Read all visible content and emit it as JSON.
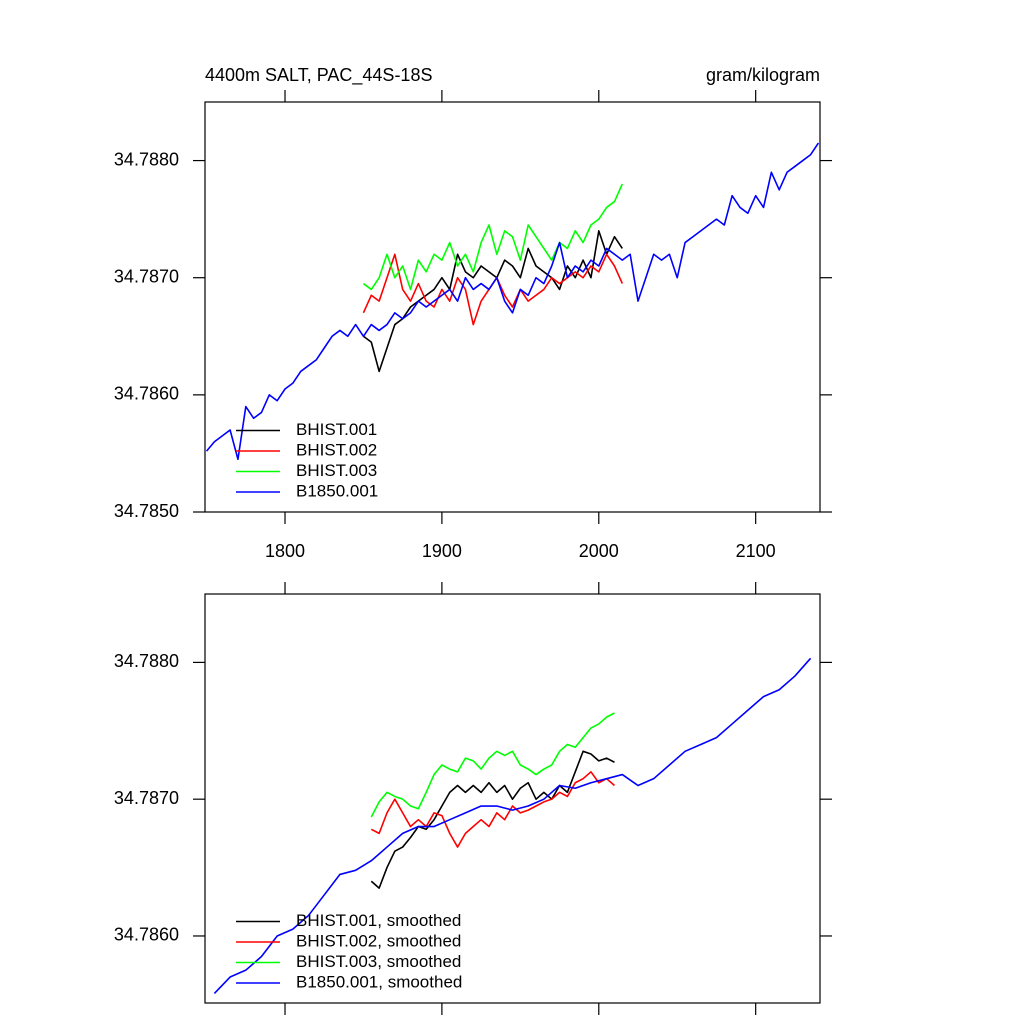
{
  "chart_data": [
    {
      "type": "line",
      "title": "4400m SALT, PAC_44S-18S",
      "units": "gram/kilogram",
      "xlim": [
        1749,
        2141
      ],
      "xticks": [
        1800,
        1900,
        2000,
        2100
      ],
      "show_xtick_labels": true,
      "ylim": [
        34.785,
        34.7885
      ],
      "yticks": [
        {
          "value": 34.785,
          "label": "34.7850"
        },
        {
          "value": 34.786,
          "label": "34.7860"
        },
        {
          "value": 34.787,
          "label": "34.7870"
        },
        {
          "value": 34.788,
          "label": "34.7880"
        }
      ],
      "legend": "lower left",
      "series": [
        {
          "name": "BHIST.001",
          "color": "#000000",
          "x": [
            1850,
            1855,
            1860,
            1865,
            1870,
            1875,
            1880,
            1885,
            1890,
            1895,
            1900,
            1905,
            1910,
            1915,
            1920,
            1925,
            1930,
            1935,
            1940,
            1945,
            1950,
            1955,
            1960,
            1965,
            1970,
            1975,
            1980,
            1985,
            1990,
            1995,
            2000,
            2005,
            2010,
            2015
          ],
          "values": [
            34.7865,
            34.78645,
            34.7862,
            34.7864,
            34.7866,
            34.78665,
            34.78675,
            34.7868,
            34.78685,
            34.7869,
            34.787,
            34.7869,
            34.7872,
            34.78705,
            34.787,
            34.7871,
            34.78705,
            34.787,
            34.78715,
            34.7871,
            34.787,
            34.78725,
            34.7871,
            34.78705,
            34.787,
            34.7869,
            34.7871,
            34.787,
            34.78715,
            34.787,
            34.7874,
            34.7872,
            34.78735,
            34.78725
          ]
        },
        {
          "name": "BHIST.002",
          "color": "#ff0000",
          "x": [
            1850,
            1855,
            1860,
            1865,
            1870,
            1875,
            1880,
            1885,
            1890,
            1895,
            1900,
            1905,
            1910,
            1915,
            1920,
            1925,
            1930,
            1935,
            1940,
            1945,
            1950,
            1955,
            1960,
            1965,
            1970,
            1975,
            1980,
            1985,
            1990,
            1995,
            2000,
            2005,
            2010,
            2015
          ],
          "values": [
            34.7867,
            34.78685,
            34.7868,
            34.787,
            34.7872,
            34.7869,
            34.7868,
            34.78695,
            34.7868,
            34.78675,
            34.7869,
            34.7868,
            34.787,
            34.7869,
            34.7866,
            34.7868,
            34.7869,
            34.787,
            34.78685,
            34.78675,
            34.7869,
            34.7868,
            34.78685,
            34.7869,
            34.787,
            34.78695,
            34.787,
            34.78705,
            34.787,
            34.7871,
            34.78705,
            34.7872,
            34.7871,
            34.78695
          ]
        },
        {
          "name": "BHIST.003",
          "color": "#00ff00",
          "x": [
            1850,
            1855,
            1860,
            1865,
            1870,
            1875,
            1880,
            1885,
            1890,
            1895,
            1900,
            1905,
            1910,
            1915,
            1920,
            1925,
            1930,
            1935,
            1940,
            1945,
            1950,
            1955,
            1960,
            1965,
            1970,
            1975,
            1980,
            1985,
            1990,
            1995,
            2000,
            2005,
            2010,
            2015
          ],
          "values": [
            34.78695,
            34.7869,
            34.787,
            34.7872,
            34.787,
            34.7871,
            34.7869,
            34.78715,
            34.78705,
            34.7872,
            34.78715,
            34.7873,
            34.7871,
            34.7872,
            34.78705,
            34.7873,
            34.78745,
            34.7872,
            34.7874,
            34.78735,
            34.78715,
            34.78745,
            34.78735,
            34.78725,
            34.78715,
            34.7873,
            34.78725,
            34.7874,
            34.7873,
            34.78745,
            34.7875,
            34.7876,
            34.78765,
            34.7878
          ]
        },
        {
          "name": "B1850.001",
          "color": "#0000ff",
          "x": [
            1750,
            1755,
            1760,
            1765,
            1770,
            1775,
            1780,
            1785,
            1790,
            1795,
            1800,
            1805,
            1810,
            1815,
            1820,
            1825,
            1830,
            1835,
            1840,
            1845,
            1850,
            1855,
            1860,
            1865,
            1870,
            1875,
            1880,
            1885,
            1890,
            1895,
            1900,
            1905,
            1910,
            1915,
            1920,
            1925,
            1930,
            1935,
            1940,
            1945,
            1950,
            1955,
            1960,
            1965,
            1970,
            1975,
            1980,
            1985,
            1990,
            1995,
            2000,
            2005,
            2010,
            2015,
            2020,
            2025,
            2030,
            2035,
            2040,
            2045,
            2050,
            2055,
            2060,
            2065,
            2070,
            2075,
            2080,
            2085,
            2090,
            2095,
            2100,
            2105,
            2110,
            2115,
            2120,
            2125,
            2130,
            2135,
            2140
          ],
          "values": [
            34.78552,
            34.7856,
            34.78565,
            34.7857,
            34.78545,
            34.7859,
            34.7858,
            34.78585,
            34.786,
            34.78595,
            34.78605,
            34.7861,
            34.7862,
            34.78625,
            34.7863,
            34.7864,
            34.7865,
            34.78655,
            34.7865,
            34.7866,
            34.7865,
            34.7866,
            34.78655,
            34.7866,
            34.7867,
            34.78665,
            34.7867,
            34.7868,
            34.78675,
            34.7868,
            34.78685,
            34.7869,
            34.7868,
            34.787,
            34.7869,
            34.78695,
            34.7869,
            34.787,
            34.7868,
            34.7867,
            34.7869,
            34.78685,
            34.787,
            34.78695,
            34.7871,
            34.7873,
            34.787,
            34.7871,
            34.78705,
            34.78715,
            34.7871,
            34.78725,
            34.7872,
            34.78715,
            34.7872,
            34.7868,
            34.787,
            34.7872,
            34.78715,
            34.7872,
            34.787,
            34.7873,
            34.78735,
            34.7874,
            34.78745,
            34.7875,
            34.78745,
            34.7877,
            34.7876,
            34.78755,
            34.7877,
            34.7876,
            34.7879,
            34.78775,
            34.7879,
            34.78795,
            34.788,
            34.78805,
            34.78815
          ]
        }
      ]
    },
    {
      "type": "line",
      "xlim": [
        1749,
        2141
      ],
      "xticks": [
        1800,
        1900,
        2000,
        2100
      ],
      "show_xtick_labels": false,
      "ylim": [
        34.78551,
        34.7885
      ],
      "yticks": [
        {
          "value": 34.786,
          "label": "34.7860"
        },
        {
          "value": 34.787,
          "label": "34.7870"
        },
        {
          "value": 34.788,
          "label": "34.7880"
        }
      ],
      "legend": "lower left",
      "series": [
        {
          "name": "BHIST.001, smoothed",
          "color": "#000000",
          "x": [
            1855,
            1860,
            1865,
            1870,
            1875,
            1880,
            1885,
            1890,
            1895,
            1900,
            1905,
            1910,
            1915,
            1920,
            1925,
            1930,
            1935,
            1940,
            1945,
            1950,
            1955,
            1960,
            1965,
            1970,
            1975,
            1980,
            1985,
            1990,
            1995,
            2000,
            2005,
            2010
          ],
          "values": [
            34.7864,
            34.78635,
            34.7865,
            34.78662,
            34.78665,
            34.78672,
            34.7868,
            34.78678,
            34.78685,
            34.78695,
            34.78705,
            34.7871,
            34.78705,
            34.7871,
            34.78705,
            34.78712,
            34.78705,
            34.7871,
            34.787,
            34.78708,
            34.78712,
            34.787,
            34.78705,
            34.787,
            34.7871,
            34.78705,
            34.7872,
            34.78735,
            34.78733,
            34.78728,
            34.7873,
            34.78727
          ]
        },
        {
          "name": "BHIST.002, smoothed",
          "color": "#ff0000",
          "x": [
            1855,
            1860,
            1865,
            1870,
            1875,
            1880,
            1885,
            1890,
            1895,
            1900,
            1905,
            1910,
            1915,
            1920,
            1925,
            1930,
            1935,
            1940,
            1945,
            1950,
            1955,
            1960,
            1965,
            1970,
            1975,
            1980,
            1985,
            1990,
            1995,
            2000,
            2005,
            2010
          ],
          "values": [
            34.78678,
            34.78675,
            34.7869,
            34.787,
            34.7869,
            34.7868,
            34.78685,
            34.7868,
            34.7869,
            34.78688,
            34.78675,
            34.78665,
            34.78675,
            34.7868,
            34.78685,
            34.7868,
            34.7869,
            34.78685,
            34.78695,
            34.7869,
            34.78692,
            34.78695,
            34.78698,
            34.787,
            34.78705,
            34.78702,
            34.78712,
            34.78715,
            34.7872,
            34.78712,
            34.78715,
            34.7871
          ]
        },
        {
          "name": "BHIST.003, smoothed",
          "color": "#00ff00",
          "x": [
            1855,
            1860,
            1865,
            1870,
            1875,
            1880,
            1885,
            1890,
            1895,
            1900,
            1905,
            1910,
            1915,
            1920,
            1925,
            1930,
            1935,
            1940,
            1945,
            1950,
            1955,
            1960,
            1965,
            1970,
            1975,
            1980,
            1985,
            1990,
            1995,
            2000,
            2005,
            2010
          ],
          "values": [
            34.78687,
            34.78698,
            34.78705,
            34.78702,
            34.787,
            34.78695,
            34.78693,
            34.78705,
            34.78718,
            34.78725,
            34.78722,
            34.7872,
            34.7873,
            34.78728,
            34.78722,
            34.7873,
            34.78735,
            34.78732,
            34.78735,
            34.78725,
            34.78722,
            34.78718,
            34.78722,
            34.78725,
            34.78735,
            34.7874,
            34.78738,
            34.78745,
            34.78752,
            34.78755,
            34.7876,
            34.78763
          ]
        },
        {
          "name": "B1850.001, smoothed",
          "color": "#0000ff",
          "x": [
            1755,
            1765,
            1775,
            1785,
            1795,
            1805,
            1815,
            1825,
            1835,
            1845,
            1855,
            1865,
            1875,
            1885,
            1895,
            1905,
            1915,
            1925,
            1935,
            1945,
            1955,
            1965,
            1975,
            1985,
            1995,
            2005,
            2015,
            2025,
            2035,
            2045,
            2055,
            2065,
            2075,
            2085,
            2095,
            2105,
            2115,
            2125,
            2135
          ],
          "values": [
            34.78558,
            34.7857,
            34.78575,
            34.78585,
            34.786,
            34.78605,
            34.78615,
            34.7863,
            34.78645,
            34.78648,
            34.78655,
            34.78665,
            34.78675,
            34.7868,
            34.7868,
            34.78685,
            34.7869,
            34.78695,
            34.78695,
            34.78692,
            34.78695,
            34.787,
            34.7871,
            34.78708,
            34.78712,
            34.78715,
            34.78718,
            34.7871,
            34.78715,
            34.78725,
            34.78735,
            34.7874,
            34.78745,
            34.78755,
            34.78765,
            34.78775,
            34.7878,
            34.7879,
            34.78803
          ]
        }
      ]
    }
  ]
}
